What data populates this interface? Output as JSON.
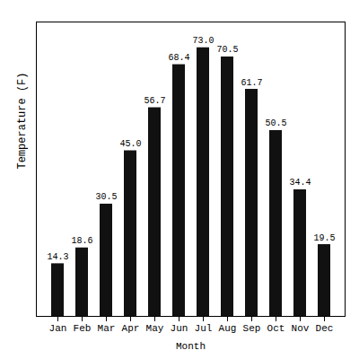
{
  "chart_data": {
    "type": "bar",
    "xlabel": "Month",
    "ylabel": "Temperature (F)",
    "categories": [
      "Jan",
      "Feb",
      "Mar",
      "Apr",
      "May",
      "Jun",
      "Jul",
      "Aug",
      "Sep",
      "Oct",
      "Nov",
      "Dec"
    ],
    "values": [
      14.3,
      18.6,
      30.5,
      45.0,
      56.7,
      68.4,
      73.0,
      70.5,
      61.7,
      50.5,
      34.4,
      19.5
    ],
    "value_labels": [
      "14.3",
      "18.6",
      "30.5",
      "45.0",
      "56.7",
      "68.4",
      "73.0",
      "70.5",
      "61.7",
      "50.5",
      "34.4",
      "19.5"
    ],
    "color": "#111111",
    "ylim": [
      0,
      80
    ],
    "yticks": [],
    "grid": false,
    "data_labels": true,
    "tick_labels": "x"
  }
}
